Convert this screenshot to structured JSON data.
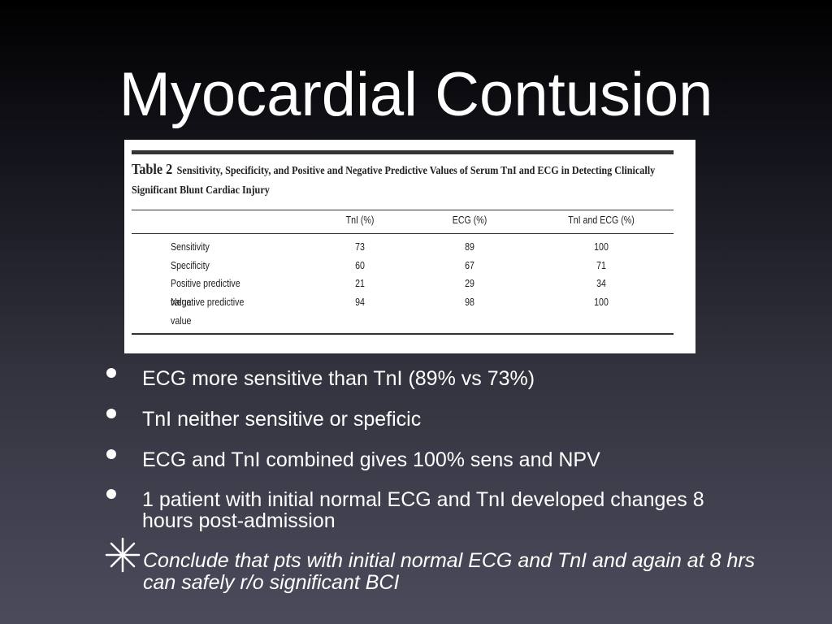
{
  "slide": {
    "title": "Myocardial Contusion",
    "table": {
      "label": "Table 2",
      "caption": "Sensitivity, Specificity, and Positive and Negative Predictive Values of Serum TnI and ECG in Detecting Clinically Significant Blunt Cardiac Injury",
      "headers": [
        "TnI (%)",
        "ECG (%)",
        "TnI and ECG (%)"
      ],
      "rows": [
        [
          "Sensitivity",
          "73",
          "89",
          "100"
        ],
        [
          "Specificity",
          "60",
          "67",
          "71"
        ],
        [
          "Positive predictive value",
          "21",
          "29",
          "34"
        ],
        [
          "Negative predictive value",
          "94",
          "98",
          "100"
        ]
      ]
    },
    "bullets": [
      "ECG more sensitive than TnI (89% vs 73%)",
      "TnI neither sensitive or speficic",
      "ECG and TnI combined gives 100% sens and NPV",
      "1 patient with initial normal ECG and TnI developed changes 8 hours post-admission"
    ],
    "conclusion": "Conclude that pts with initial normal ECG and TnI and again at 8 hrs can safely r/o significant BCI"
  }
}
